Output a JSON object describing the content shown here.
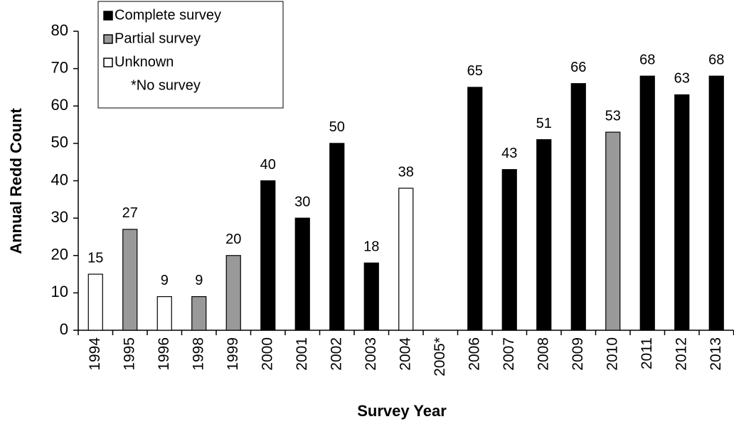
{
  "chart_data": {
    "type": "bar",
    "x_label": "Survey Year",
    "y_label": "Annual Redd Count",
    "categories": [
      "1994",
      "1995",
      "1996",
      "1998",
      "1999",
      "2000",
      "2001",
      "2002",
      "2003",
      "2004",
      "2005*",
      "2006",
      "2007",
      "2008",
      "2009",
      "2010",
      "2011",
      "2012",
      "2013"
    ],
    "series": [
      {
        "name": "Complete survey",
        "color": "#000000",
        "values": [
          null,
          null,
          null,
          null,
          null,
          40,
          30,
          50,
          18,
          null,
          null,
          65,
          43,
          51,
          66,
          null,
          68,
          63,
          68
        ]
      },
      {
        "name": "Partial survey",
        "color": "#999999",
        "values": [
          null,
          27,
          null,
          9,
          20,
          null,
          null,
          null,
          null,
          null,
          null,
          null,
          null,
          null,
          null,
          53,
          null,
          null,
          null
        ]
      },
      {
        "name": "Unknown",
        "color": "#ffffff",
        "values": [
          15,
          null,
          9,
          null,
          null,
          null,
          null,
          null,
          null,
          38,
          null,
          null,
          null,
          null,
          null,
          null,
          null,
          null,
          null
        ]
      }
    ],
    "legend_note": "*No survey",
    "legend_position": "upper left",
    "ylim": [
      0,
      80
    ],
    "yticks": [
      0,
      10,
      20,
      30,
      40,
      50,
      60,
      70,
      80
    ],
    "grid": false
  }
}
